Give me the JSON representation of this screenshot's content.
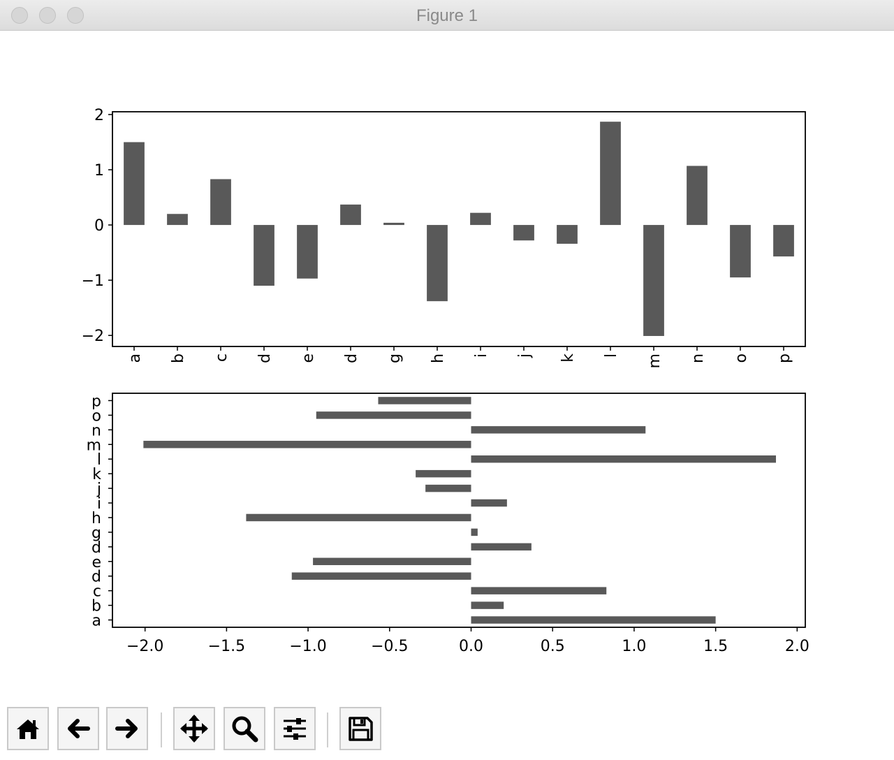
{
  "window": {
    "title": "Figure 1"
  },
  "toolbar": {
    "buttons": [
      {
        "name": "home-button",
        "icon": "home-icon"
      },
      {
        "name": "back-button",
        "icon": "arrow-left-icon"
      },
      {
        "name": "forward-button",
        "icon": "arrow-right-icon"
      },
      {
        "name": "pan-button",
        "icon": "move-icon"
      },
      {
        "name": "zoom-button",
        "icon": "magnifier-icon"
      },
      {
        "name": "configure-subplots-button",
        "icon": "sliders-icon"
      },
      {
        "name": "save-button",
        "icon": "floppy-disk-icon"
      }
    ]
  },
  "chart_data": [
    {
      "type": "bar",
      "orientation": "vertical",
      "categories": [
        "a",
        "b",
        "c",
        "d",
        "e",
        "d",
        "g",
        "h",
        "i",
        "j",
        "k",
        "l",
        "m",
        "n",
        "o",
        "p"
      ],
      "values": [
        1.5,
        0.2,
        0.83,
        -1.1,
        -0.97,
        0.37,
        0.04,
        -1.38,
        0.22,
        -0.28,
        -0.34,
        1.87,
        -2.01,
        1.07,
        -0.95,
        -0.57
      ],
      "ylim": [
        -2.2,
        2.05
      ],
      "yticks": [
        -2,
        -1,
        0,
        1,
        2
      ],
      "ytick_labels": [
        "−2",
        "−1",
        "0",
        "1",
        "2"
      ],
      "title": "",
      "xlabel": "",
      "ylabel": "",
      "bar_color": "#595959",
      "grid": false
    },
    {
      "type": "bar",
      "orientation": "horizontal",
      "categories": [
        "a",
        "b",
        "c",
        "d",
        "e",
        "d",
        "g",
        "h",
        "i",
        "j",
        "k",
        "l",
        "m",
        "n",
        "o",
        "p"
      ],
      "values": [
        1.5,
        0.2,
        0.83,
        -1.1,
        -0.97,
        0.37,
        0.04,
        -1.38,
        0.22,
        -0.28,
        -0.34,
        1.87,
        -2.01,
        1.07,
        -0.95,
        -0.57
      ],
      "xlim": [
        -2.2,
        2.05
      ],
      "xticks": [
        -2.0,
        -1.5,
        -1.0,
        -0.5,
        0.0,
        0.5,
        1.0,
        1.5,
        2.0
      ],
      "xtick_labels": [
        "−2.0",
        "−1.5",
        "−1.0",
        "−0.5",
        "0.0",
        "0.5",
        "1.0",
        "1.5",
        "2.0"
      ],
      "title": "",
      "xlabel": "",
      "ylabel": "",
      "bar_color": "#595959",
      "grid": false
    }
  ]
}
